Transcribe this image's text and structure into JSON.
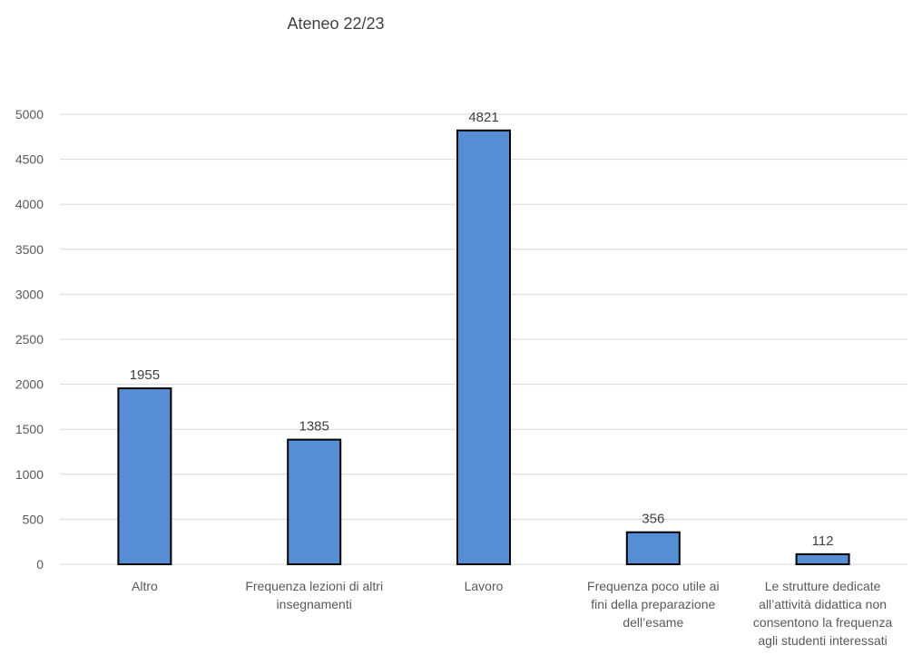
{
  "chart_data": {
    "type": "bar",
    "title": "Ateneo 22/23",
    "categories": [
      [
        "Altro"
      ],
      [
        "Frequenza lezioni di altri",
        "insegnamenti"
      ],
      [
        "Lavoro"
      ],
      [
        "Frequenza poco utile ai",
        "fini della preparazione",
        "dell’esame"
      ],
      [
        "Le strutture dedicate",
        "all’attività didattica non",
        "consentono la frequenza",
        "agli studenti interessati"
      ]
    ],
    "values": [
      1955,
      1385,
      4821,
      356,
      112
    ],
    "data_labels": [
      "1955",
      "1385",
      "4821",
      "356",
      "112"
    ],
    "ylim": [
      0,
      5000
    ],
    "yticks": [
      0,
      500,
      1000,
      1500,
      2000,
      2500,
      3000,
      3500,
      4000,
      4500,
      5000
    ],
    "grid": true,
    "bar_color": "#558ed5",
    "bar_border": "#000000",
    "grid_color": "#d9d9d9"
  }
}
